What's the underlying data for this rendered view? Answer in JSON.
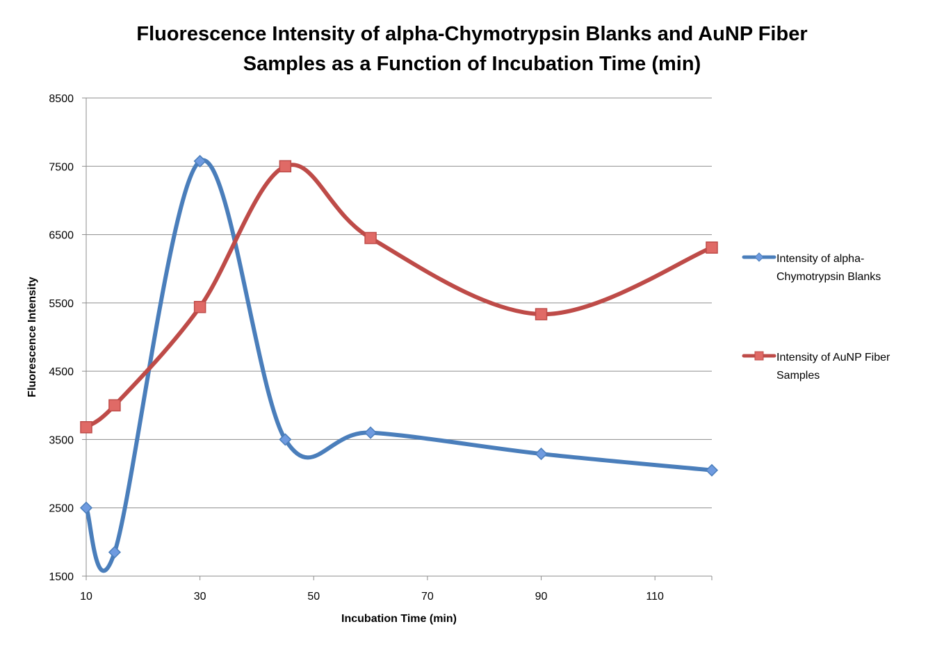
{
  "chart_data": {
    "type": "line",
    "title_lines": [
      "Fluorescence Intensity of alpha-Chymotrypsin Blanks and AuNP Fiber",
      "Samples as a Function of Incubation Time (min)"
    ],
    "xlabel": "Incubation Time (min)",
    "ylabel": "Fluorescence Intensity",
    "xlim": [
      10,
      120
    ],
    "ylim": [
      1500,
      8500
    ],
    "xticks": [
      10,
      30,
      50,
      70,
      90,
      110
    ],
    "yticks": [
      1500,
      2500,
      3500,
      4500,
      5500,
      6500,
      7500,
      8500
    ],
    "grid": "horizontal",
    "smooth": true,
    "legend_position": "right",
    "x": [
      10,
      15,
      30,
      45,
      60,
      90,
      120
    ],
    "series": [
      {
        "name_lines": [
          "Intensity of alpha-",
          "Chymotrypsin Blanks"
        ],
        "color": "#4a7ebb",
        "marker": "diamond",
        "marker_fill": "#6f9be0",
        "values": [
          2500,
          1850,
          7575,
          3500,
          3600,
          3290,
          3050
        ]
      },
      {
        "name_lines": [
          "Intensity of AuNP Fiber",
          "Samples"
        ],
        "color": "#be4b48",
        "marker": "square",
        "marker_fill": "#e06a66",
        "values": [
          3680,
          4000,
          5440,
          7500,
          6450,
          5335,
          6310
        ]
      }
    ]
  }
}
